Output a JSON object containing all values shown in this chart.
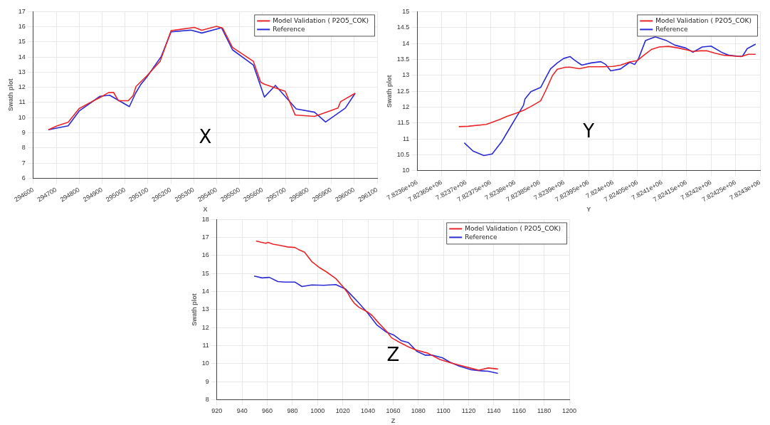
{
  "chart_data": [
    {
      "type": "line",
      "xlabel": "X",
      "ylabel": "Swath plot",
      "annotations": [
        "X"
      ],
      "legend": "top right",
      "grid": true,
      "marker": "none",
      "line_style": "solid",
      "xlim": [
        294600,
        296100
      ],
      "xticks": [
        294600,
        294700,
        294800,
        294900,
        295000,
        295100,
        295200,
        295300,
        295400,
        295500,
        295600,
        295700,
        295800,
        295900,
        296000,
        296100
      ],
      "ylim": [
        6,
        17
      ],
      "yticks": [
        6,
        7,
        8,
        9,
        10,
        11,
        12,
        13,
        14,
        15,
        16,
        17
      ],
      "series": [
        {
          "name": "Model Validation ( P2O5_COK)",
          "color": "#e8262a",
          "x": [
            294666,
            294704,
            294752,
            294800,
            294843,
            294891,
            294928,
            294950,
            294971,
            295014,
            295035,
            295048,
            295094,
            295153,
            295201,
            295303,
            295335,
            295399,
            295426,
            295469,
            295560,
            295592,
            295608,
            295699,
            295742,
            295827,
            295929,
            295940,
            296004
          ],
          "values": [
            9.2,
            9.46,
            9.69,
            10.6,
            10.96,
            11.33,
            11.65,
            11.67,
            11.12,
            11.12,
            11.45,
            12.06,
            12.74,
            13.72,
            15.75,
            15.96,
            15.77,
            16.03,
            15.91,
            14.64,
            13.72,
            12.34,
            12.21,
            11.74,
            10.18,
            10.08,
            10.63,
            11.05,
            11.61
          ]
        },
        {
          "name": "Reference",
          "color": "#2b2bd6",
          "x": [
            294666,
            294752,
            294800,
            294891,
            294933,
            295019,
            295046,
            295068,
            295094,
            295158,
            295201,
            295287,
            295335,
            295421,
            295469,
            295560,
            295608,
            295656,
            295747,
            295827,
            295875,
            295961,
            296004
          ],
          "values": [
            9.2,
            9.46,
            10.44,
            11.41,
            11.48,
            10.73,
            11.61,
            12.17,
            12.66,
            14.04,
            15.67,
            15.78,
            15.59,
            15.94,
            14.48,
            13.47,
            11.36,
            12.13,
            10.58,
            10.36,
            9.71,
            10.63,
            11.61
          ]
        }
      ]
    },
    {
      "type": "line",
      "xlabel": "Y",
      "ylabel": "Swath plot",
      "annotations": [
        "Y"
      ],
      "legend": "top right",
      "grid": true,
      "marker": "none",
      "line_style": "solid",
      "xlim": [
        7823600,
        7824300
      ],
      "xticks": [
        {
          "value": 7823600,
          "label": "7.8236e+06"
        },
        {
          "value": 7823650,
          "label": "7.82365e+06"
        },
        {
          "value": 7823700,
          "label": "7.8237e+06"
        },
        {
          "value": 7823750,
          "label": "7.82375e+06"
        },
        {
          "value": 7823800,
          "label": "7.8238e+06"
        },
        {
          "value": 7823850,
          "label": "7.82385e+06"
        },
        {
          "value": 7823900,
          "label": "7.8239e+06"
        },
        {
          "value": 7823950,
          "label": "7.82395e+06"
        },
        {
          "value": 7824000,
          "label": "7.824e+06"
        },
        {
          "value": 7824050,
          "label": "7.82405e+06"
        },
        {
          "value": 7824100,
          "label": "7.8241e+06"
        },
        {
          "value": 7824150,
          "label": "7.82415e+06"
        },
        {
          "value": 7824200,
          "label": "7.8242e+06"
        },
        {
          "value": 7824250,
          "label": "7.82425e+06"
        },
        {
          "value": 7824300,
          "label": "7.8243e+06"
        }
      ],
      "ylim": [
        10,
        15
      ],
      "yticks": [
        10,
        10.5,
        11,
        11.5,
        12,
        12.5,
        13,
        13.5,
        14,
        14.5,
        15
      ],
      "series": [
        {
          "name": "Model Validation ( P2O5_COK)",
          "color": "#e8262a",
          "x": [
            7823685,
            7823704,
            7823741,
            7823768,
            7823783,
            7823802,
            7823817,
            7823832,
            7823852,
            7823862,
            7823876,
            7823886,
            7823901,
            7823911,
            7823931,
            7823950,
            7823980,
            7824000,
            7824015,
            7824034,
            7824049,
            7824064,
            7824079,
            7824094,
            7824113,
            7824133,
            7824153,
            7824163,
            7824178,
            7824192,
            7824207,
            7824227,
            7824242,
            7824261,
            7824276,
            7824291
          ],
          "values": [
            11.39,
            11.4,
            11.46,
            11.61,
            11.71,
            11.81,
            11.9,
            12.02,
            12.2,
            12.51,
            12.99,
            13.19,
            13.25,
            13.26,
            13.21,
            13.27,
            13.27,
            13.28,
            13.32,
            13.42,
            13.46,
            13.65,
            13.82,
            13.89,
            13.91,
            13.86,
            13.79,
            13.75,
            13.77,
            13.77,
            13.7,
            13.63,
            13.61,
            13.59,
            13.66,
            13.66
          ]
        },
        {
          "name": "Reference",
          "color": "#2b2bd6",
          "x": [
            7823696,
            7823714,
            7823736,
            7823753,
            7823773,
            7823783,
            7823802,
            7823817,
            7823820,
            7823832,
            7823852,
            7823872,
            7823886,
            7823899,
            7823912,
            7823921,
            7823936,
            7823955,
            7823975,
            7823985,
            7823995,
            7824015,
            7824034,
            7824044,
            7824052,
            7824066,
            7824086,
            7824108,
            7824126,
            7824148,
            7824163,
            7824182,
            7824200,
            7824222,
            7824237,
            7824256,
            7824264,
            7824274,
            7824291
          ],
          "values": [
            10.88,
            10.62,
            10.48,
            10.53,
            10.93,
            11.19,
            11.68,
            12.06,
            12.26,
            12.49,
            12.62,
            13.2,
            13.39,
            13.53,
            13.59,
            13.48,
            13.32,
            13.39,
            13.43,
            13.34,
            13.14,
            13.2,
            13.41,
            13.34,
            13.53,
            14.09,
            14.21,
            14.1,
            13.95,
            13.86,
            13.73,
            13.89,
            13.92,
            13.72,
            13.63,
            13.6,
            13.6,
            13.84,
            13.98
          ]
        }
      ]
    },
    {
      "type": "line",
      "xlabel": "Z",
      "ylabel": "Swath plot",
      "annotations": [
        "Z"
      ],
      "legend": "top right",
      "grid": true,
      "marker": "none",
      "line_style": "solid",
      "xlim": [
        920,
        1200
      ],
      "xticks": [
        920,
        940,
        960,
        980,
        1000,
        1020,
        1040,
        1060,
        1080,
        1100,
        1120,
        1140,
        1160,
        1180,
        1200
      ],
      "ylim": [
        8,
        18
      ],
      "yticks": [
        8,
        9,
        10,
        11,
        12,
        13,
        14,
        15,
        16,
        17,
        18
      ],
      "series": [
        {
          "name": "Model Validation ( P2O5_COK)",
          "color": "#e8262a",
          "x": [
            951.1,
            955,
            958.8,
            960.7,
            964.6,
            970.3,
            976.1,
            981.9,
            984.8,
            989.6,
            995.3,
            1001.1,
            1006.9,
            1014.5,
            1020.3,
            1024.2,
            1026.1,
            1029,
            1032.8,
            1039.5,
            1043.4,
            1048.2,
            1054.9,
            1058.7,
            1064.5,
            1072.2,
            1078,
            1087.6,
            1097.2,
            1106.8,
            1114.5,
            1122.2,
            1128,
            1135.6,
            1143.3
          ],
          "values": [
            16.81,
            16.74,
            16.68,
            16.73,
            16.63,
            16.56,
            16.48,
            16.45,
            16.34,
            16.19,
            15.67,
            15.35,
            15.1,
            14.72,
            14.26,
            13.9,
            13.65,
            13.37,
            13.13,
            12.88,
            12.67,
            12.28,
            11.79,
            11.44,
            11.21,
            10.93,
            10.76,
            10.58,
            10.23,
            10.02,
            9.88,
            9.74,
            9.64,
            9.76,
            9.7
          ]
        },
        {
          "name": "Reference",
          "color": "#2b2bd6",
          "x": [
            949.6,
            955.9,
            961.7,
            968.4,
            974.2,
            981.9,
            987.6,
            995.3,
            1004.9,
            1014.5,
            1022.2,
            1026.1,
            1031.8,
            1039.5,
            1047.2,
            1054.9,
            1060.7,
            1066.4,
            1072.2,
            1078.9,
            1085.6,
            1091.4,
            1099.1,
            1104.9,
            1112.5,
            1122.2,
            1129.8,
            1135.6,
            1143.3
          ],
          "values": [
            14.86,
            14.76,
            14.79,
            14.56,
            14.53,
            14.53,
            14.28,
            14.37,
            14.35,
            14.39,
            14.14,
            13.86,
            13.44,
            12.84,
            12.14,
            11.74,
            11.58,
            11.28,
            11.17,
            10.68,
            10.47,
            10.47,
            10.33,
            10.09,
            9.86,
            9.66,
            9.6,
            9.58,
            9.46
          ]
        }
      ]
    }
  ]
}
